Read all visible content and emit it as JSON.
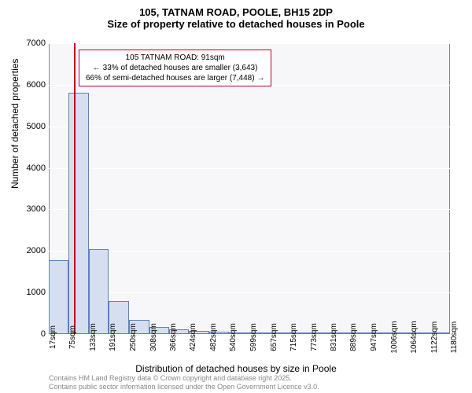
{
  "title": "105, TATNAM ROAD, POOLE, BH15 2DP",
  "subtitle": "Size of property relative to detached houses in Poole",
  "chart": {
    "type": "histogram",
    "background_color": "#f7f7f9",
    "border_color": "#888888",
    "grid_color": "#ffffff",
    "bar_fill": "#d5dff0",
    "bar_border": "#6080b8",
    "marker_color": "#c00020",
    "ylabel": "Number of detached properties",
    "xlabel": "Distribution of detached houses by size in Poole",
    "ylim": [
      0,
      7000
    ],
    "ytick_step": 1000,
    "yticks": [
      0,
      1000,
      2000,
      3000,
      4000,
      5000,
      6000,
      7000
    ],
    "xticks": [
      17,
      75,
      133,
      191,
      250,
      308,
      366,
      424,
      482,
      540,
      599,
      657,
      715,
      773,
      831,
      889,
      947,
      1006,
      1064,
      1122,
      1180
    ],
    "xtick_unit": "sqm",
    "x_data_min": 17,
    "x_data_max": 1180,
    "bars": [
      {
        "x": 17,
        "width": 58,
        "value": 1780
      },
      {
        "x": 75,
        "width": 58,
        "value": 5800
      },
      {
        "x": 133,
        "width": 58,
        "value": 2050
      },
      {
        "x": 191,
        "width": 59,
        "value": 800
      },
      {
        "x": 250,
        "width": 58,
        "value": 350
      },
      {
        "x": 308,
        "width": 58,
        "value": 180
      },
      {
        "x": 366,
        "width": 58,
        "value": 110
      },
      {
        "x": 424,
        "width": 58,
        "value": 80
      },
      {
        "x": 482,
        "width": 58,
        "value": 60
      },
      {
        "x": 540,
        "width": 59,
        "value": 45
      },
      {
        "x": 599,
        "width": 58,
        "value": 35
      },
      {
        "x": 657,
        "width": 58,
        "value": 25
      },
      {
        "x": 715,
        "width": 58,
        "value": 18
      },
      {
        "x": 773,
        "width": 58,
        "value": 12
      },
      {
        "x": 831,
        "width": 58,
        "value": 8
      },
      {
        "x": 889,
        "width": 58,
        "value": 6
      },
      {
        "x": 947,
        "width": 59,
        "value": 4
      },
      {
        "x": 1006,
        "width": 58,
        "value": 3
      },
      {
        "x": 1064,
        "width": 58,
        "value": 2
      },
      {
        "x": 1122,
        "width": 58,
        "value": 1
      }
    ],
    "marker_x": 91,
    "annotation": {
      "line1": "105 TATNAM ROAD: 91sqm",
      "line2": "← 33% of detached houses are smaller (3,643)",
      "line3": "66% of semi-detached houses are larger (7,448) →",
      "box_border": "#c00020",
      "box_bg": "#ffffff",
      "fontsize": 10
    }
  },
  "footer": {
    "line1": "Contains HM Land Registry data © Crown copyright and database right 2025.",
    "line2": "Contains public sector information licensed under the Open Government Licence v3.0."
  }
}
